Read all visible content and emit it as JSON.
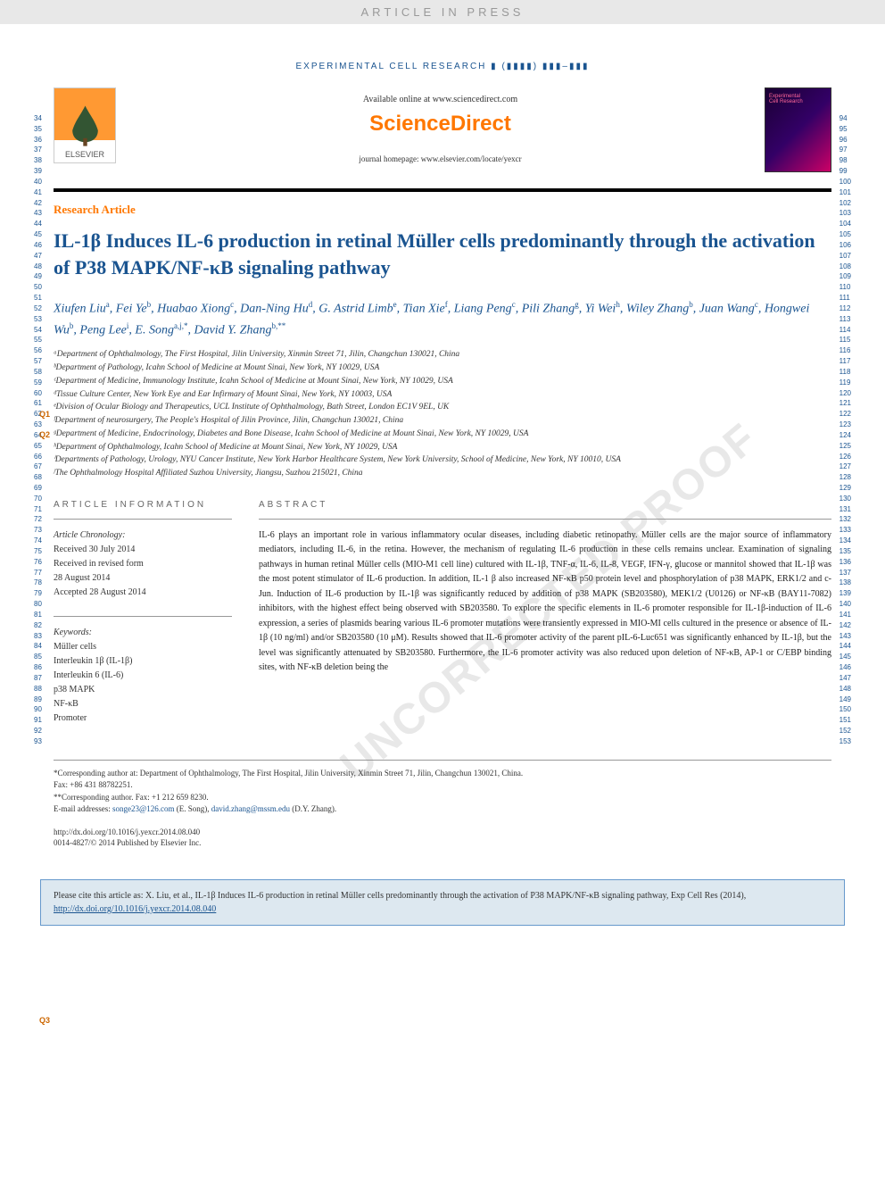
{
  "watermark": "ARTICLE IN PRESS",
  "journal_header": "EXPERIMENTAL CELL RESEARCH ▮ (▮▮▮▮) ▮▮▮–▮▮▮",
  "header": {
    "available": "Available online at www.sciencedirect.com",
    "brand": "ScienceDirect",
    "homepage": "journal homepage: www.elsevier.com/locate/yexcr",
    "elsevier": "ELSEVIER",
    "cover_line1": "Experimental",
    "cover_line2": "Cell Research"
  },
  "article_type": "Research Article",
  "title": "IL-1β Induces IL-6 production in retinal Müller cells predominantly through the activation of P38 MAPK/NF-κB signaling pathway",
  "authors_html": "Xiufen Liu<sup>a</sup>, Fei Ye<sup>b</sup>, Huabao Xiong<sup>c</sup>, Dan-Ning Hu<sup>d</sup>, G. Astrid Limb<sup>e</sup>, Tian Xie<sup>f</sup>, Liang Peng<sup>c</sup>, Pili Zhang<sup>g</sup>, Yi Wei<sup>h</sup>, Wiley Zhang<sup>b</sup>, Juan Wang<sup>c</sup>, Hongwei Wu<sup>b</sup>, Peng Lee<sup>i</sup>, E. Song<sup>a,j,*</sup>, David Y. Zhang<sup>b,**</sup>",
  "affiliations": [
    "ᵃDepartment of Ophthalmology, The First Hospital, Jilin University, Xinmin Street 71, Jilin, Changchun 130021, China",
    "ᵇDepartment of Pathology, Icahn School of Medicine at Mount Sinai, New York, NY 10029, USA",
    "ᶜDepartment of Medicine, Immunology Institute, Icahn School of Medicine at Mount Sinai, New York, NY 10029, USA",
    "ᵈTissue Culture Center, New York Eye and Ear Infirmary of Mount Sinai, New York, NY 10003, USA",
    "ᵉDivision of Ocular Biology and Therapeutics, UCL Institute of Ophthalmology, Bath Street, London EC1V 9EL, UK",
    "ᶠDepartment of neurosurgery, The People's Hospital of Jilin Province, Jilin, Changchun 130021, China",
    "ᵍDepartment of Medicine, Endocrinology, Diabetes and Bone Disease, Icahn School of Medicine at Mount Sinai, New York, NY 10029, USA",
    "ʰDepartment of Ophthalmology, Icahn School of Medicine at Mount Sinai, New York, NY 10029, USA",
    "ⁱDepartments of Pathology, Urology, NYU Cancer Institute, New York Harbor Healthcare System, New York University, School of Medicine, New York, NY 10010, USA",
    "ʲThe Ophthalmology Hospital Affiliated Suzhou University, Jiangsu, Suzhou 215021, China"
  ],
  "article_info": {
    "heading": "ARTICLE INFORMATION",
    "chronology_label": "Article Chronology:",
    "received": "Received 30 July 2014",
    "revised_label": "Received in revised form",
    "revised_date": "28 August 2014",
    "accepted": "Accepted 28 August 2014",
    "keywords_label": "Keywords:",
    "keywords": [
      "Müller cells",
      "Interleukin 1β (IL-1β)",
      "Interleukin 6 (IL-6)",
      "p38 MAPK",
      "NF-κB",
      "Promoter"
    ]
  },
  "abstract": {
    "heading": "ABSTRACT",
    "text": "IL-6 plays an important role in various inflammatory ocular diseases, including diabetic retinopathy. Müller cells are the major source of inflammatory mediators, including IL-6, in the retina. However, the mechanism of regulating IL-6 production in these cells remains unclear. Examination of signaling pathways in human retinal Müller cells (MIO-M1 cell line) cultured with IL-1β, TNF-α, IL-6, IL-8, VEGF, IFN-γ, glucose or mannitol showed that IL-1β was the most potent stimulator of IL-6 production. In addition, IL-1 β also increased NF-κB p50 protein level and phosphorylation of p38 MAPK, ERK1/2 and c-Jun. Induction of IL-6 production by IL-1β was significantly reduced by addition of p38 MAPK (SB203580), MEK1/2 (U0126) or NF-κB (BAY11-7082) inhibitors, with the highest effect being observed with SB203580. To explore the specific elements in IL-6 promoter responsible for IL-1β-induction of IL-6 expression, a series of plasmids bearing various IL-6 promoter mutations were transiently expressed in MIO-MI cells cultured in the presence or absence of IL-1β (10 ng/ml) and/or SB203580 (10 μM). Results showed that IL-6 promoter activity of the parent pIL-6-Luc651 was significantly enhanced by IL-1β, but the level was significantly attenuated by SB203580. Furthermore, the IL-6 promoter activity was also reduced upon deletion of NF-κB, AP-1 or C/EBP binding sites, with NF-κB deletion being the"
  },
  "correspondence": {
    "line1": "*Corresponding author at: Department of Ophthalmology, The First Hospital, Jilin University, Xinmin Street 71, Jilin, Changchun 130021, China.",
    "fax1": "Fax: +86 431 88782251.",
    "line2": "**Corresponding author. Fax: +1 212 659 8230.",
    "email_label": "E-mail addresses: ",
    "email1": "songe23@126.com",
    "email1_name": " (E. Song), ",
    "email2": "david.zhang@mssm.edu",
    "email2_name": " (D.Y. Zhang)."
  },
  "doi": {
    "url": "http://dx.doi.org/10.1016/j.yexcr.2014.08.040",
    "copyright": "0014-4827/© 2014 Published by Elsevier Inc."
  },
  "citation": {
    "text": "Please cite this article as: X. Liu, et al., IL-1β Induces IL-6 production in retinal Müller cells predominantly through the activation of P38 MAPK/NF-κB signaling pathway, Exp Cell Res (2014), ",
    "link": "http://dx.doi.org/10.1016/j.yexcr.2014.08.040"
  },
  "q_markers": {
    "q1": "Q1",
    "q2": "Q2",
    "q3": "Q3"
  },
  "line_numbers": {
    "left_start": 34,
    "left_end": 93,
    "right_start": 94,
    "right_end": 153
  },
  "uncorrected_wm": "UNCORRECTED PROOF",
  "colors": {
    "brand_orange": "#ff7700",
    "link_blue": "#1a5490",
    "q_orange": "#cc6600",
    "cite_bg": "#dde8f0",
    "cite_border": "#6699cc"
  }
}
